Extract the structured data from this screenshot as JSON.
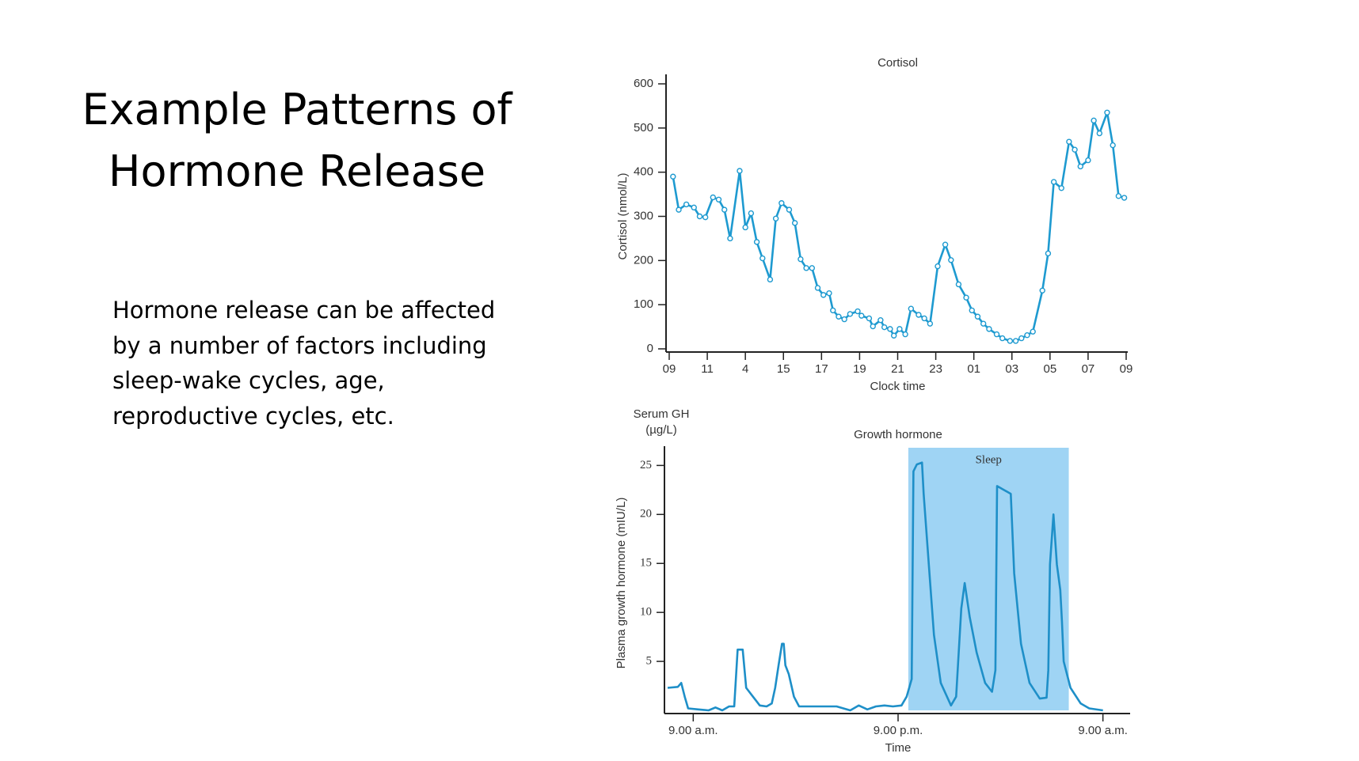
{
  "slide_title": [
    "Example Patterns of",
    "Hormone Release"
  ],
  "body": [
    "Hormone release can be affected",
    "by a number of factors including",
    "sleep-wake cycles, age,",
    "reproductive cycles, etc."
  ],
  "chart_data": [
    {
      "type": "line",
      "title": "Cortisol",
      "x_label": "Clock time",
      "y_label": "Cortisol (nmol/L)",
      "color": "#1e9ad0",
      "markers": true,
      "xlim": [
        0,
        24
      ],
      "xticks": [
        {
          "value": 0,
          "label": "09"
        },
        {
          "value": 2,
          "label": "11"
        },
        4,
        {
          "value": 6,
          "label": "15"
        },
        {
          "value": 8,
          "label": "17"
        },
        {
          "value": 10,
          "label": "19"
        },
        {
          "value": 12,
          "label": "21"
        },
        {
          "value": 14,
          "label": "23"
        },
        {
          "value": 16,
          "label": "01"
        },
        {
          "value": 18,
          "label": "03"
        },
        {
          "value": 20,
          "label": "05"
        },
        {
          "value": 22,
          "label": "07"
        },
        {
          "value": 24,
          "label": "09"
        }
      ],
      "ylim": [
        0,
        600
      ],
      "yticks": [
        0,
        100,
        200,
        300,
        400,
        500,
        600
      ],
      "x": [
        0.2,
        0.5,
        0.9,
        1.3,
        1.6,
        1.9,
        2.3,
        2.6,
        2.9,
        3.2,
        3.7,
        4.0,
        4.3,
        4.6,
        4.9,
        5.3,
        5.6,
        5.9,
        6.3,
        6.6,
        6.9,
        7.2,
        7.5,
        7.8,
        8.1,
        8.4,
        8.6,
        8.9,
        9.2,
        9.5,
        9.9,
        10.1,
        10.5,
        10.7,
        11.1,
        11.3,
        11.6,
        11.8,
        12.1,
        12.4,
        12.7,
        13.1,
        13.4,
        13.7,
        14.1,
        14.5,
        14.8,
        15.2,
        15.6,
        15.9,
        16.2,
        16.5,
        16.8,
        17.2,
        17.5,
        17.9,
        18.2,
        18.5,
        18.8,
        19.1,
        19.6,
        19.9,
        20.2,
        20.6,
        21.0,
        21.3,
        21.6,
        22.0,
        22.3,
        22.6,
        23.0,
        23.3,
        23.6,
        23.9
      ],
      "values": [
        390,
        315,
        327,
        320,
        300,
        298,
        343,
        338,
        315,
        250,
        403,
        275,
        307,
        242,
        205,
        157,
        295,
        330,
        315,
        285,
        203,
        183,
        183,
        138,
        122,
        126,
        87,
        73,
        67,
        79,
        85,
        75,
        69,
        51,
        65,
        49,
        45,
        30,
        45,
        33,
        91,
        77,
        69,
        57,
        187,
        236,
        201,
        146,
        116,
        87,
        73,
        57,
        45,
        33,
        24,
        18,
        18,
        24,
        31,
        39,
        132,
        216,
        378,
        364,
        469,
        451,
        413,
        427,
        517,
        488,
        535,
        461,
        346,
        342
      ]
    },
    {
      "type": "line",
      "title": "Growth hormone",
      "x_label": "Time",
      "y_label": "Plasma growth hormone (mIU/L)",
      "y_label_alt": [
        "Serum GH",
        "(µg/L)"
      ],
      "color": "#1e8fc8",
      "markers": false,
      "shade": {
        "label": "Sleep",
        "x": [
          12.6,
          22.0
        ],
        "color": "#9fd4f4"
      },
      "xlim": [
        -1.5,
        25.5
      ],
      "xticks": [
        {
          "value": 0,
          "label": "9.00 a.m."
        },
        {
          "value": 12,
          "label": "9.00 p.m."
        },
        {
          "value": 24,
          "label": "9.00 a.m."
        }
      ],
      "ylim": [
        0,
        26
      ],
      "yticks": [
        5,
        10,
        15,
        20,
        25
      ],
      "x": [
        -1.5,
        -0.9,
        -0.7,
        -0.5,
        -0.3,
        0.3,
        0.9,
        1.3,
        1.7,
        2.1,
        2.4,
        2.6,
        2.9,
        3.1,
        3.5,
        3.9,
        4.3,
        4.6,
        4.8,
        5.0,
        5.2,
        5.3,
        5.4,
        5.6,
        5.9,
        6.2,
        7.1,
        8.4,
        9.2,
        9.7,
        10.2,
        10.7,
        11.2,
        11.7,
        12.2,
        12.5,
        12.8,
        12.9,
        13.1,
        13.4,
        13.5,
        13.8,
        14.1,
        14.5,
        15.1,
        15.4,
        15.7,
        15.9,
        16.2,
        16.6,
        17.1,
        17.5,
        17.7,
        17.8,
        18.1,
        18.6,
        18.8,
        19.2,
        19.7,
        20.3,
        20.7,
        20.8,
        20.9,
        21.1,
        21.3,
        21.5,
        21.6,
        21.7,
        22.1,
        22.7,
        23.2,
        24.0
      ],
      "values": [
        2.3,
        2.4,
        2.8,
        1.4,
        0.2,
        0.1,
        0,
        0.3,
        0,
        0.4,
        0.4,
        6.2,
        6.2,
        2.3,
        1.4,
        0.5,
        0.4,
        0.7,
        2.3,
        4.6,
        6.8,
        6.8,
        4.6,
        3.7,
        1.4,
        0.4,
        0.4,
        0.4,
        0,
        0.5,
        0.1,
        0.4,
        0.5,
        0.4,
        0.5,
        1.4,
        3.2,
        24.4,
        25.1,
        25.3,
        22.1,
        14.9,
        7.7,
        2.8,
        0.5,
        1.4,
        10.4,
        13.0,
        9.5,
        5.9,
        2.8,
        1.9,
        4.1,
        22.9,
        22.6,
        22.1,
        14.0,
        6.8,
        2.8,
        1.2,
        1.3,
        4.1,
        14.9,
        20.0,
        14.9,
        12.3,
        9.1,
        5.0,
        2.3,
        0.7,
        0.2,
        0
      ]
    }
  ]
}
